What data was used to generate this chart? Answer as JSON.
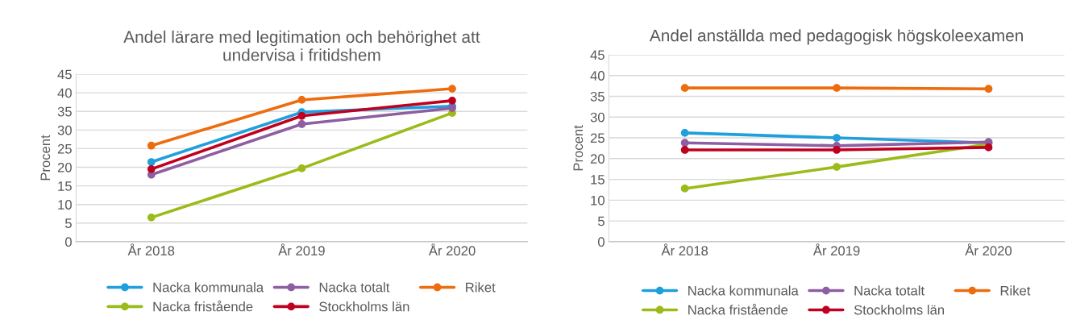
{
  "chart_data": [
    {
      "type": "line",
      "title": "Andel lärare med legitimation och behörighet att\nundervisa i fritidshem",
      "ylabel": "Procent",
      "categories": [
        "År 2018",
        "År 2019",
        "År 2020"
      ],
      "ylim": [
        0,
        45
      ],
      "yticks": [
        0,
        5,
        10,
        15,
        20,
        25,
        30,
        35,
        40,
        45
      ],
      "grid": "y",
      "legend": "bottom",
      "marker": "circle",
      "line_style": "solid",
      "series": [
        {
          "name": "Nacka kommunala",
          "color": "#1f9fdb",
          "values": [
            21.4,
            34.8,
            36.4
          ]
        },
        {
          "name": "Nacka fristående",
          "color": "#9bbb1a",
          "values": [
            6.5,
            19.7,
            34.6
          ]
        },
        {
          "name": "Nacka totalt",
          "color": "#8e5ea2",
          "values": [
            18,
            31.6,
            35.9
          ]
        },
        {
          "name": "Stockholms län",
          "color": "#c00020",
          "values": [
            19.5,
            33.8,
            37.9
          ]
        },
        {
          "name": "Riket",
          "color": "#ed6c0e",
          "values": [
            25.8,
            38.1,
            41.1
          ]
        }
      ]
    },
    {
      "type": "line",
      "title": "Andel anställda med pedagogisk högskoleexamen",
      "ylabel": "Procent",
      "categories": [
        "År 2018",
        "År 2019",
        "År 2020"
      ],
      "ylim": [
        0,
        45
      ],
      "yticks": [
        0,
        5,
        10,
        15,
        20,
        25,
        30,
        35,
        40,
        45
      ],
      "grid": "y",
      "legend": "bottom",
      "marker": "circle",
      "line_style": "solid",
      "series": [
        {
          "name": "Nacka kommunala",
          "color": "#1f9fdb",
          "values": [
            26.2,
            25,
            23.8
          ]
        },
        {
          "name": "Nacka fristående",
          "color": "#9bbb1a",
          "values": [
            12.8,
            18,
            23.5
          ]
        },
        {
          "name": "Nacka totalt",
          "color": "#8e5ea2",
          "values": [
            23.8,
            23.1,
            24
          ]
        },
        {
          "name": "Stockholms län",
          "color": "#c00020",
          "values": [
            22.1,
            22.1,
            22.7
          ]
        },
        {
          "name": "Riket",
          "color": "#ed6c0e",
          "values": [
            37,
            37,
            36.8
          ]
        }
      ]
    }
  ]
}
